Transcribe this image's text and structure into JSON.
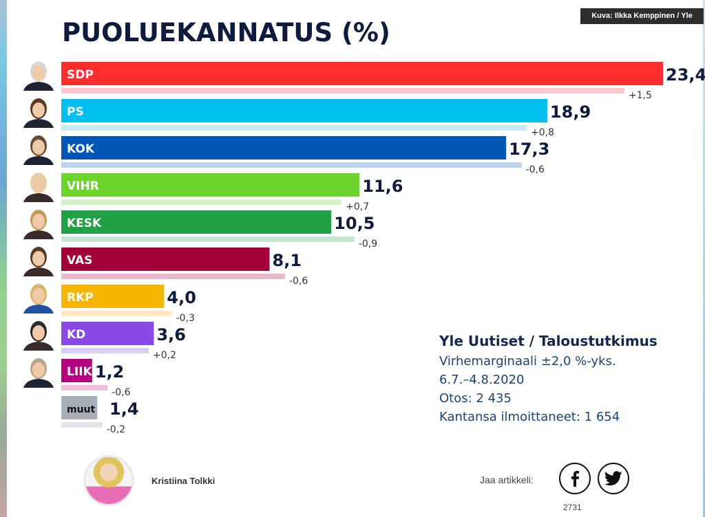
{
  "photo_credit": "Kuva: Ilkka Kemppinen / Yle",
  "chart_data": {
    "type": "bar",
    "orientation": "horizontal",
    "title": "PUOLUEKANNATUS (%)",
    "xlabel": "",
    "ylabel": "",
    "xlim": [
      0,
      23.4
    ],
    "grid": false,
    "categories": [
      "SDP",
      "PS",
      "KOK",
      "VIHR",
      "KESK",
      "VAS",
      "RKP",
      "KD",
      "LIIK",
      "muut"
    ],
    "values": [
      23.4,
      18.9,
      17.3,
      11.6,
      10.5,
      8.1,
      4.0,
      3.6,
      1.2,
      1.4
    ],
    "value_labels": [
      "23,4",
      "18,9",
      "17,3",
      "11,6",
      "10,5",
      "8,1",
      "4,0",
      "3,6",
      "1,2",
      "1,4"
    ],
    "changes": [
      1.5,
      0.8,
      -0.6,
      0.7,
      -0.9,
      -0.6,
      -0.3,
      0.2,
      -0.6,
      -0.2
    ],
    "change_labels": [
      "+1,5",
      "+0,8",
      "-0,6",
      "+0,7",
      "-0,9",
      "-0,6",
      "-0,3",
      "+0,2",
      "-0,6",
      "-0,2"
    ],
    "colors": [
      "#ff2d2d",
      "#00bfee",
      "#0056b3",
      "#6dd42c",
      "#22a045",
      "#a30039",
      "#f7b500",
      "#8a48e6",
      "#b5007f",
      "#a7b0b8"
    ],
    "previous_colors": [
      "#ffc8cc",
      "#c3ebf9",
      "#bdd1ea",
      "#d3f1c4",
      "#c5e8cf",
      "#e8b9c9",
      "#fde9c1",
      "#dccdf7",
      "#eebfdc",
      "#e3e6e9"
    ],
    "has_portrait": [
      true,
      true,
      true,
      true,
      true,
      true,
      true,
      true,
      true,
      false
    ]
  },
  "source": {
    "title": "Yle Uutiset / Taloustutkimus",
    "lines": [
      "Virhemarginaali ±2,0 %-yks.",
      "6.7.–4.8.2020",
      "Otos: 2 435",
      "Kantansa ilmoittaneet: 1 654"
    ]
  },
  "author": {
    "name": "Kristiina Tolkki"
  },
  "share": {
    "label": "Jaa artikkeli:",
    "facebook_icon": "f",
    "count": "2731"
  }
}
